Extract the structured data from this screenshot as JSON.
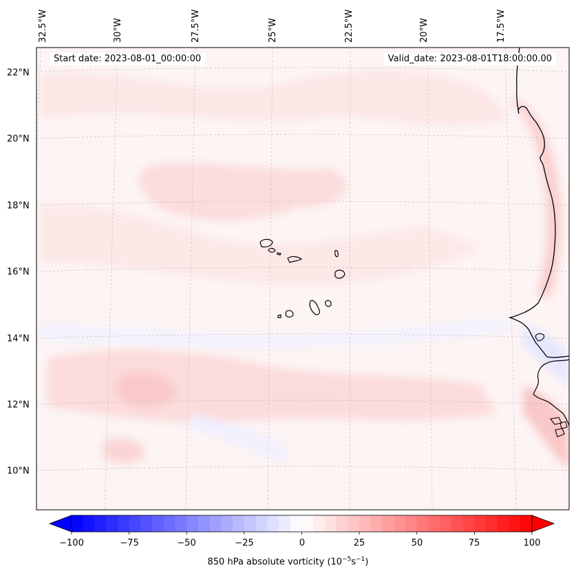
{
  "map": {
    "start_date": "Start date: 2023-08-01_00:00:00",
    "valid_date": "Valid_date: 2023-08-01T18:00:00.00",
    "lon_labels": [
      "32.5°W",
      "30°W",
      "27.5°W",
      "25°W",
      "22.5°W",
      "20°W",
      "17.5°W"
    ],
    "lat_labels": [
      "22°N",
      "20°N",
      "18°N",
      "16°N",
      "14°N",
      "12°N",
      "10°N"
    ],
    "lon_values": [
      -32.5,
      -30,
      -27.5,
      -25,
      -22.5,
      -20,
      -17.5
    ],
    "lat_values": [
      22,
      20,
      18,
      16,
      14,
      12,
      10
    ],
    "field": "850 hPa absolute vorticity",
    "region": "Cape Verde Islands and West African coast (Senegal)"
  },
  "colorbar": {
    "label_main": "850 hPa absolute vorticity (10",
    "label_exp1": "−5",
    "label_mid": "s",
    "label_exp2": "−1",
    "label_end": ")",
    "ticks": [
      "−100",
      "−75",
      "−50",
      "−25",
      "0",
      "25",
      "50",
      "75",
      "100"
    ],
    "tick_values": [
      -100,
      -75,
      -50,
      -25,
      0,
      25,
      50,
      75,
      100
    ],
    "min": -100,
    "max": 100,
    "levels": 40,
    "neg_color": "#0000ff",
    "mid_color": "#ffffff",
    "pos_color": "#ff0000"
  },
  "style": {
    "coast_color": "#000000",
    "grid_color": "#b0b0b0",
    "field_base": "#fdf3f3",
    "field_pos": "#fde0e0",
    "field_pos_strong": "#fbd0d0",
    "field_neg": "#eef0ff"
  }
}
